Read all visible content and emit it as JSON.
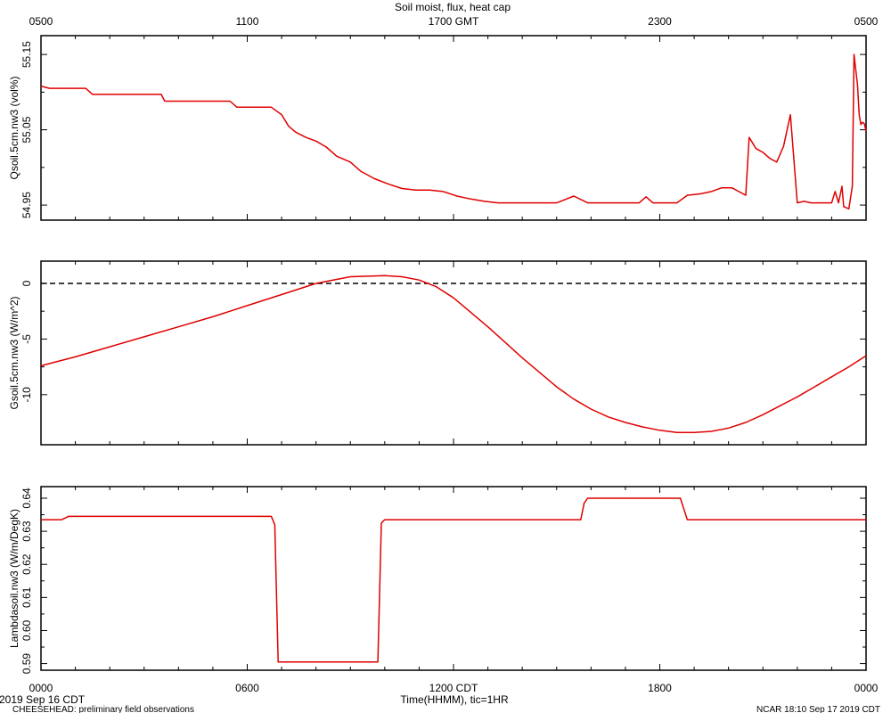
{
  "title": "Soil moist, flux, heat cap",
  "top_axis_ticks": [
    "0500",
    "1100",
    "1700 GMT",
    "2300",
    "0500"
  ],
  "bottom_axis_ticks": [
    "0000",
    "0600",
    "1200 CDT",
    "1800",
    "0000"
  ],
  "xlabel": "Time(HHMM), tic=1HR",
  "date_label": "2019 Sep 16 CDT",
  "footer_left": "CHEESEHEAD: preliminary field observations",
  "footer_right": "NCAR 18:10 Sep 17 2019 CDT",
  "line_color": "#e00000",
  "chart_data": [
    {
      "type": "line",
      "ylabel": "Qsoil.5cm.nw3 (vol%)",
      "yticks": [
        "54.95",
        "55.05",
        "55.15"
      ],
      "ylim": [
        54.93,
        55.175
      ],
      "xlim": [
        0,
        24
      ],
      "series": [
        {
          "x": [
            0,
            0.25,
            1.3,
            1.5,
            1.6,
            3.5,
            3.6,
            5.5,
            5.7,
            6.7,
            7.0,
            7.2,
            7.4,
            7.7,
            8.0,
            8.3,
            8.6,
            9.0,
            9.3,
            9.7,
            10.1,
            10.5,
            10.9,
            11.3,
            11.7,
            12.1,
            12.5,
            12.9,
            13.3,
            13.7,
            14.0,
            14.5,
            15.0,
            15.5,
            15.9,
            16.1,
            16.4,
            17.0,
            17.4,
            17.6,
            17.8,
            18.5,
            18.8,
            19.2,
            19.5,
            19.8,
            20.1,
            20.3,
            20.5,
            20.6,
            20.8,
            21.0,
            21.2,
            21.4,
            21.6,
            21.8,
            22.0,
            22.2,
            22.4,
            22.6,
            22.8,
            23.0,
            23.1,
            23.2,
            23.3,
            23.35,
            23.5,
            23.6,
            23.65,
            23.7,
            23.75,
            23.8,
            23.85,
            23.9,
            23.95,
            24.0
          ],
          "y": [
            55.108,
            55.105,
            55.105,
            55.097,
            55.097,
            55.097,
            55.088,
            55.088,
            55.08,
            55.08,
            55.07,
            55.055,
            55.047,
            55.04,
            55.035,
            55.027,
            55.015,
            55.007,
            54.995,
            54.985,
            54.978,
            54.972,
            54.97,
            54.97,
            54.968,
            54.962,
            54.958,
            54.955,
            54.953,
            54.953,
            54.953,
            54.953,
            54.953,
            54.962,
            54.953,
            54.953,
            54.953,
            54.953,
            54.953,
            54.961,
            54.953,
            54.953,
            54.963,
            54.965,
            54.968,
            54.973,
            54.973,
            54.968,
            54.963,
            55.04,
            55.025,
            55.02,
            55.012,
            55.007,
            55.028,
            55.07,
            54.953,
            54.955,
            54.953,
            54.953,
            54.953,
            54.953,
            54.968,
            54.953,
            54.975,
            54.948,
            54.945,
            54.975,
            55.15,
            55.13,
            55.11,
            55.07,
            55.057,
            55.06,
            55.058,
            55.048
          ]
        }
      ]
    },
    {
      "type": "line",
      "ylabel": "Gsoil.5cm.nw3 (W/m^2)",
      "yticks": [
        "-10",
        "-5",
        "0"
      ],
      "ylim": [
        -14.5,
        2.0
      ],
      "xlim": [
        0,
        24
      ],
      "reference_line": 0,
      "series": [
        {
          "x": [
            0,
            1,
            2,
            3,
            4,
            5,
            6,
            7,
            8,
            9,
            10,
            10.5,
            11,
            11.5,
            12,
            12.5,
            13,
            13.5,
            14,
            14.5,
            15,
            15.5,
            16,
            16.5,
            17,
            17.5,
            18,
            18.5,
            19,
            19.5,
            20,
            20.5,
            21,
            21.5,
            22,
            22.5,
            23,
            23.5,
            24
          ],
          "y": [
            -7.4,
            -6.6,
            -5.7,
            -4.8,
            -3.9,
            -3.0,
            -2.0,
            -1.0,
            0.0,
            0.6,
            0.7,
            0.6,
            0.3,
            -0.3,
            -1.3,
            -2.6,
            -3.9,
            -5.3,
            -6.7,
            -8.0,
            -9.3,
            -10.4,
            -11.3,
            -12.0,
            -12.5,
            -12.9,
            -13.2,
            -13.4,
            -13.4,
            -13.3,
            -13.0,
            -12.5,
            -11.8,
            -11.0,
            -10.2,
            -9.3,
            -8.4,
            -7.5,
            -6.5
          ]
        }
      ]
    },
    {
      "type": "line",
      "ylabel": "Lambdasoil.nw3 (W/m/DegK)",
      "yticks": [
        "0.59",
        "0.60",
        "0.61",
        "0.62",
        "0.63",
        "0.64"
      ],
      "ylim": [
        0.588,
        0.6435
      ],
      "xlim": [
        0,
        24
      ],
      "series": [
        {
          "x": [
            0,
            0.6,
            0.8,
            6.7,
            6.8,
            6.9,
            9.8,
            9.9,
            10.0,
            15.7,
            15.8,
            15.9,
            18.6,
            18.8,
            24.0
          ],
          "y": [
            0.6335,
            0.6335,
            0.6345,
            0.6345,
            0.632,
            0.5905,
            0.5905,
            0.6325,
            0.6335,
            0.6335,
            0.6385,
            0.64,
            0.64,
            0.6335,
            0.6335
          ]
        }
      ]
    }
  ]
}
